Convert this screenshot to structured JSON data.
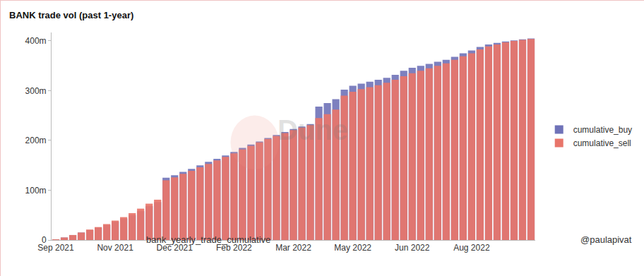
{
  "chart_data": {
    "type": "bar",
    "title": "BANK trade vol (past 1-year)",
    "subtitle": "bank_yearly_trade_cumulative",
    "annotations": [
      "@paulapivat",
      "Dune"
    ],
    "categories": [
      "Sep 2021",
      null,
      null,
      null,
      null,
      null,
      null,
      "Nov 2021",
      null,
      null,
      null,
      null,
      null,
      null,
      "Dec 2021",
      null,
      null,
      null,
      null,
      null,
      null,
      "Feb 2022",
      null,
      null,
      null,
      null,
      null,
      null,
      "Mar 2022",
      null,
      null,
      null,
      null,
      null,
      null,
      "May 2022",
      null,
      null,
      null,
      null,
      null,
      null,
      "Jun 2022",
      null,
      null,
      null,
      null,
      null,
      null,
      "Aug 2022",
      null,
      null,
      null,
      null,
      null,
      null,
      null
    ],
    "series": [
      {
        "name": "cumulative_buy",
        "color": "#6f72b8",
        "values": [
          1,
          5,
          10,
          15,
          20,
          25,
          30,
          37,
          43,
          50,
          58,
          68,
          76,
          125,
          130,
          137,
          143,
          150,
          157,
          163,
          170,
          177,
          185,
          192,
          198,
          205,
          211,
          217,
          223,
          228,
          233,
          268,
          275,
          283,
          302,
          310,
          314,
          318,
          322,
          326,
          332,
          340,
          346,
          350,
          354,
          358,
          362,
          368,
          375,
          381,
          388,
          393,
          396,
          399,
          401,
          403,
          405
        ]
      },
      {
        "name": "cumulative_sell",
        "color": "#e8756a",
        "values": [
          1,
          5,
          10,
          15,
          21,
          26,
          32,
          39,
          46,
          54,
          63,
          73,
          81,
          120,
          126,
          133,
          139,
          146,
          153,
          160,
          167,
          174,
          182,
          189,
          196,
          203,
          209,
          215,
          221,
          226,
          231,
          245,
          253,
          262,
          290,
          298,
          303,
          307,
          311,
          316,
          322,
          329,
          335,
          340,
          345,
          350,
          355,
          362,
          369,
          375,
          383,
          389,
          393,
          397,
          400,
          402,
          404
        ]
      }
    ],
    "ylim": [
      0,
      417
    ],
    "yticks": [
      0,
      {
        "value": 100,
        "label": "100m"
      },
      {
        "value": 200,
        "label": "200m"
      },
      {
        "value": 300,
        "label": "300m"
      },
      {
        "value": 400,
        "label": "400m"
      }
    ],
    "grid": false,
    "legend": "right"
  }
}
